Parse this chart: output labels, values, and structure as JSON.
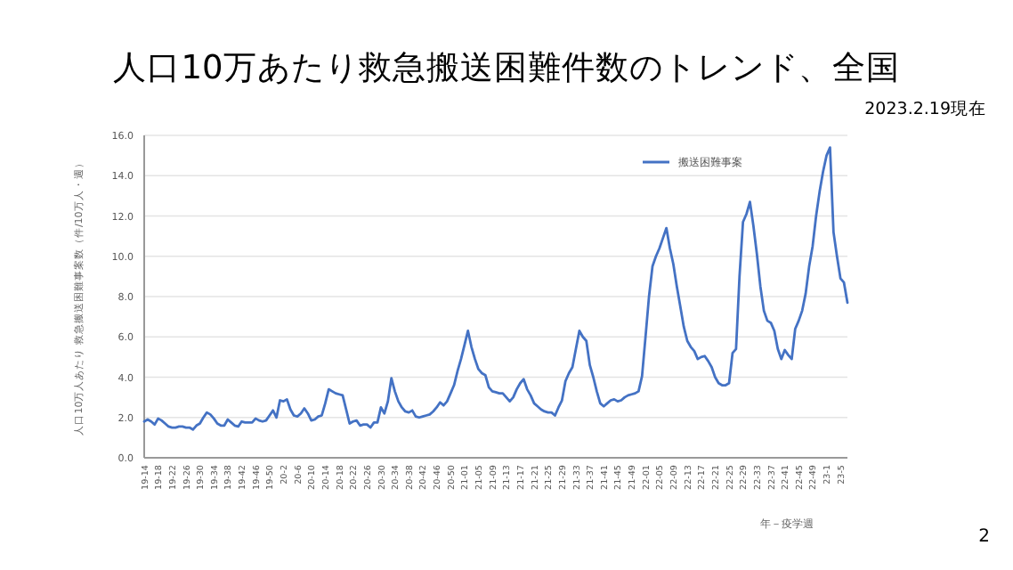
{
  "chart_data": {
    "type": "line",
    "title": "人口10万あたり救急搬送困難件数のトレンド、全国",
    "annotations": [
      "2023.2.19現在",
      "2"
    ],
    "xlabel": "年－疫学週",
    "ylabel": "人口10万人あたり 救急搬送困難事案数（件/10万人・週）",
    "categories": [
      "19-14",
      null,
      null,
      null,
      "19-18",
      null,
      null,
      null,
      "19-22",
      null,
      null,
      null,
      "19-26",
      null,
      null,
      null,
      "19-30",
      null,
      null,
      null,
      "19-34",
      null,
      null,
      null,
      "19-38",
      null,
      null,
      null,
      "19-42",
      null,
      null,
      null,
      "19-46",
      null,
      null,
      null,
      "19-50",
      null,
      null,
      null,
      "20-2",
      null,
      null,
      null,
      "20-6",
      null,
      null,
      null,
      "20-10",
      null,
      null,
      null,
      "20-14",
      null,
      null,
      null,
      "20-18",
      null,
      null,
      null,
      "20-22",
      null,
      null,
      null,
      "20-26",
      null,
      null,
      null,
      "20-30",
      null,
      null,
      null,
      "20-34",
      null,
      null,
      null,
      "20-38",
      null,
      null,
      null,
      "20-42",
      null,
      null,
      null,
      "20-46",
      null,
      null,
      null,
      "20-50",
      null,
      null,
      null,
      "21-01",
      null,
      null,
      null,
      "21-05",
      null,
      null,
      null,
      "21-09",
      null,
      null,
      null,
      "21-13",
      null,
      null,
      null,
      "21-17",
      null,
      null,
      null,
      "21-21",
      null,
      null,
      null,
      "21-25",
      null,
      null,
      null,
      "21-29",
      null,
      null,
      null,
      "21-33",
      null,
      null,
      null,
      "21-37",
      null,
      null,
      null,
      "21-41",
      null,
      null,
      null,
      "21-45",
      null,
      null,
      null,
      "21-49",
      null,
      null,
      null,
      "22-01",
      null,
      null,
      null,
      "22-05",
      null,
      null,
      null,
      "22-09",
      null,
      null,
      null,
      "22-13",
      null,
      null,
      null,
      "22-17",
      null,
      null,
      null,
      "22-21",
      null,
      null,
      null,
      "22-25",
      null,
      null,
      null,
      "22-29",
      null,
      null,
      null,
      "22-33",
      null,
      null,
      null,
      "22-37",
      null,
      null,
      null,
      "22-41",
      null,
      null,
      null,
      "22-45",
      null,
      null,
      null,
      "22-49",
      null,
      null,
      null,
      "23-1",
      null,
      null,
      null,
      "23-5",
      null,
      null
    ],
    "series": [
      {
        "name": "搬送困難事案",
        "color": "#4472c4",
        "values": [
          1.8,
          1.9,
          1.8,
          1.65,
          1.95,
          1.85,
          1.7,
          1.55,
          1.5,
          1.5,
          1.55,
          1.55,
          1.5,
          1.5,
          1.4,
          1.6,
          1.7,
          2.0,
          2.25,
          2.15,
          1.95,
          1.7,
          1.6,
          1.6,
          1.9,
          1.75,
          1.6,
          1.55,
          1.8,
          1.75,
          1.75,
          1.75,
          1.95,
          1.85,
          1.8,
          1.85,
          2.1,
          2.35,
          2.0,
          2.85,
          2.8,
          2.9,
          2.4,
          2.1,
          2.05,
          2.2,
          2.45,
          2.2,
          1.85,
          1.9,
          2.05,
          2.1,
          2.7,
          3.4,
          3.3,
          3.2,
          3.15,
          3.1,
          2.4,
          1.7,
          1.8,
          1.85,
          1.6,
          1.65,
          1.65,
          1.5,
          1.75,
          1.75,
          2.5,
          2.2,
          2.8,
          3.95,
          3.3,
          2.8,
          2.5,
          2.3,
          2.25,
          2.35,
          2.05,
          2.0,
          2.05,
          2.1,
          2.15,
          2.3,
          2.5,
          2.75,
          2.6,
          2.8,
          3.2,
          3.6,
          4.3,
          4.9,
          5.6,
          6.3,
          5.5,
          4.9,
          4.4,
          4.2,
          4.1,
          3.5,
          3.3,
          3.25,
          3.2,
          3.2,
          3.0,
          2.8,
          3.0,
          3.4,
          3.7,
          3.9,
          3.4,
          3.1,
          2.7,
          2.55,
          2.4,
          2.3,
          2.25,
          2.25,
          2.1,
          2.5,
          2.85,
          3.8,
          4.2,
          4.5,
          5.4,
          6.3,
          6.0,
          5.8,
          4.6,
          4.0,
          3.3,
          2.7,
          2.55,
          2.7,
          2.85,
          2.9,
          2.8,
          2.85,
          3.0,
          3.1,
          3.15,
          3.2,
          3.3,
          4.05,
          6.0,
          8.0,
          9.5,
          10.0,
          10.4,
          10.9,
          11.4,
          10.4,
          9.6,
          8.5,
          7.5,
          6.5,
          5.8,
          5.5,
          5.3,
          4.9,
          5.0,
          5.05,
          4.8,
          4.5,
          4.0,
          3.7,
          3.6,
          3.6,
          3.7,
          5.2,
          5.4,
          9.0,
          11.7,
          12.1,
          12.7,
          11.5,
          10.1,
          8.5,
          7.3,
          6.8,
          6.7,
          6.3,
          5.4,
          4.9,
          5.35,
          5.1,
          4.9,
          6.4,
          6.8,
          7.3,
          8.15,
          9.5,
          10.5,
          12.0,
          13.2,
          14.2,
          15.0,
          15.4,
          11.2,
          10.0,
          8.9,
          8.7,
          7.7
        ]
      }
    ],
    "ylim": [
      0,
      16
    ],
    "yticks": [
      {
        "value": 0,
        "label": "0.0"
      },
      {
        "value": 2,
        "label": "2.0"
      },
      {
        "value": 4,
        "label": "4.0"
      },
      {
        "value": 6,
        "label": "6.0"
      },
      {
        "value": 8,
        "label": "8.0"
      },
      {
        "value": 10,
        "label": "10.0"
      },
      {
        "value": 12,
        "label": "12.0"
      },
      {
        "value": 14,
        "label": "14.0"
      },
      {
        "value": 16,
        "label": "16.0"
      }
    ],
    "grid": "y",
    "legend": "top right"
  }
}
